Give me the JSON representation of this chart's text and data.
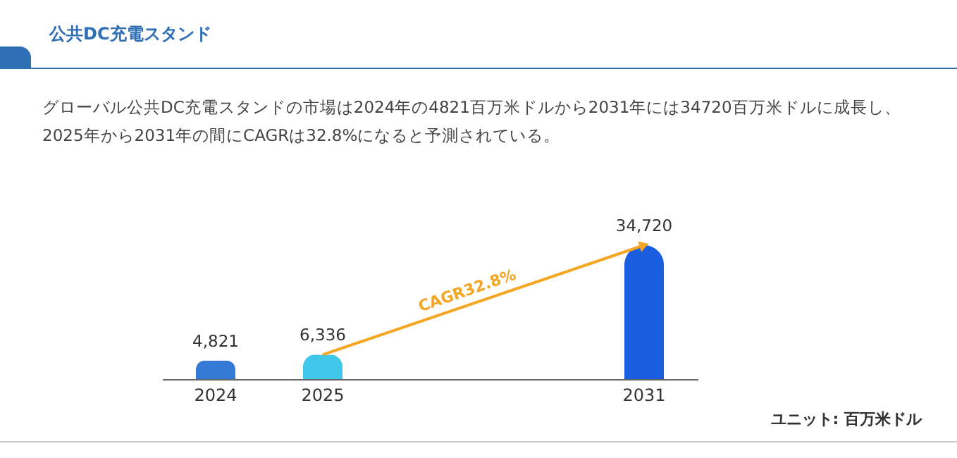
{
  "chart_data": {
    "type": "bar",
    "title": "公共DC充電スタンド",
    "subtitle": "グローバル公共DC充電スタンドの市場は2024年の4821百万米ドルから2031年には34720百万米ドルに成長し、2025年から2031年の間にCAGRは32.8%になると予測されている。",
    "categories": [
      "2024",
      "2025",
      null,
      null,
      "2031"
    ],
    "values": [
      4821,
      6336,
      null,
      null,
      34720
    ],
    "colors": [
      "#3479d3",
      "#3fc6e8",
      "#cccccc",
      "#cccccc",
      "#1a5de0"
    ],
    "value_labels": [
      "4,821",
      "6,336",
      null,
      null,
      "34,720"
    ],
    "annotations": [
      "CAGR32.8%",
      "ユニット: 百万米ドル"
    ]
  }
}
